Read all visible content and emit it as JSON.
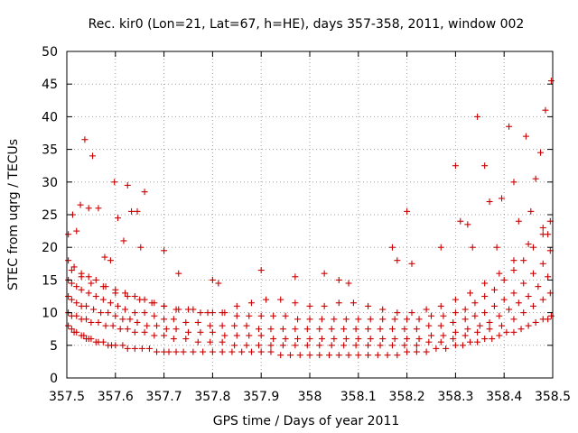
{
  "chart_data": {
    "type": "scatter",
    "title": "Rec. kir0 (Lon=21, Lat=67, h=HE), days 357-358, 2011, window 002",
    "xlabel": "GPS time / Days of year 2011",
    "ylabel": "STEC from uqrg / TECUs",
    "xlim": [
      357.5,
      358.5
    ],
    "ylim": [
      0,
      50
    ],
    "xticks": [
      "357.5",
      "357.6",
      "357.7",
      "357.8",
      "357.9",
      "358",
      "358.1",
      "358.2",
      "358.3",
      "358.4",
      "358.5"
    ],
    "yticks": [
      "0",
      "5",
      "10",
      "15",
      "20",
      "25",
      "30",
      "35",
      "40",
      "45",
      "50"
    ],
    "grid": true,
    "marker": "+",
    "color": "#cc0000",
    "series": [
      {
        "x": [
          357.503,
          357.51,
          357.515,
          357.52,
          357.53,
          357.535,
          357.54,
          357.545,
          357.55,
          357.56,
          357.565,
          357.575,
          357.585,
          357.592,
          357.6,
          357.615,
          357.625,
          357.64,
          357.655,
          357.67,
          357.685,
          357.7,
          357.71,
          357.725,
          357.74,
          357.76,
          357.78,
          357.8,
          357.82,
          357.84,
          357.86,
          357.88,
          357.9,
          357.92,
          357.94,
          357.96,
          357.98,
          358.0,
          358.02,
          358.04,
          358.06,
          358.08,
          358.1,
          358.12,
          358.14,
          358.16,
          358.18,
          358.2,
          358.22,
          358.24,
          358.26,
          358.28,
          358.3,
          358.315,
          358.33,
          358.345,
          358.36,
          358.375,
          358.39,
          358.405,
          358.42,
          358.435,
          358.45,
          358.465,
          358.48,
          358.49,
          358.497
        ],
        "y": [
          8.0,
          7.5,
          7.0,
          7.0,
          6.5,
          6.5,
          6.0,
          6.0,
          6.0,
          5.5,
          5.5,
          5.5,
          5.0,
          5.0,
          5.0,
          5.0,
          4.5,
          4.5,
          4.5,
          4.5,
          4.0,
          4.0,
          4.0,
          4.0,
          4.0,
          4.0,
          4.0,
          4.0,
          4.0,
          4.0,
          4.0,
          4.0,
          4.0,
          4.0,
          3.5,
          3.5,
          3.5,
          3.5,
          3.5,
          3.5,
          3.5,
          3.5,
          3.5,
          3.5,
          3.5,
          3.5,
          3.5,
          4.0,
          4.0,
          4.0,
          4.5,
          4.5,
          5.0,
          5.0,
          5.5,
          5.5,
          6.0,
          6.0,
          6.5,
          7.0,
          7.0,
          7.5,
          8.0,
          8.5,
          9.0,
          9.0,
          9.5
        ]
      },
      {
        "x": [
          357.503,
          357.51,
          357.52,
          357.53,
          357.54,
          357.55,
          357.565,
          357.58,
          357.595,
          357.61,
          357.625,
          357.64,
          357.66,
          357.68,
          357.7,
          357.72,
          357.745,
          357.77,
          357.795,
          357.82,
          357.845,
          357.87,
          357.895,
          357.92,
          357.945,
          357.97,
          357.995,
          358.02,
          358.045,
          358.07,
          358.095,
          358.12,
          358.145,
          358.17,
          358.195,
          358.22,
          358.245,
          358.27,
          358.295,
          358.32,
          358.345,
          358.37,
          358.395,
          358.42,
          358.44,
          358.46,
          358.48,
          358.495
        ],
        "y": [
          10.0,
          9.5,
          9.5,
          9.0,
          9.0,
          8.5,
          8.5,
          8.0,
          8.0,
          7.5,
          7.5,
          7.0,
          7.0,
          6.5,
          6.5,
          6.0,
          6.0,
          5.5,
          5.5,
          5.5,
          5.0,
          5.0,
          5.0,
          5.0,
          5.0,
          5.0,
          5.0,
          5.0,
          5.0,
          5.0,
          5.0,
          5.0,
          5.0,
          5.0,
          5.0,
          5.0,
          5.5,
          5.5,
          6.0,
          6.5,
          7.0,
          7.5,
          8.0,
          9.0,
          10.0,
          11.0,
          12.0,
          13.0
        ]
      },
      {
        "x": [
          357.503,
          357.51,
          357.52,
          357.53,
          357.54,
          357.555,
          357.57,
          357.585,
          357.6,
          357.615,
          357.63,
          357.645,
          357.665,
          357.685,
          357.705,
          357.725,
          357.75,
          357.775,
          357.8,
          357.825,
          357.85,
          357.875,
          357.9,
          357.925,
          357.95,
          357.975,
          358.0,
          358.025,
          358.05,
          358.075,
          358.1,
          358.125,
          358.15,
          358.175,
          358.2,
          358.225,
          358.25,
          358.275,
          358.3,
          358.325,
          358.35,
          358.37,
          358.39,
          358.41,
          358.43,
          358.45,
          358.47,
          358.49
        ],
        "y": [
          12.5,
          12.0,
          11.5,
          11.0,
          11.0,
          10.5,
          10.0,
          10.0,
          9.5,
          9.0,
          9.0,
          8.5,
          8.0,
          8.0,
          7.5,
          7.5,
          7.0,
          7.0,
          7.0,
          6.5,
          6.5,
          6.5,
          6.5,
          6.0,
          6.0,
          6.0,
          6.0,
          6.0,
          6.0,
          6.0,
          6.0,
          6.0,
          6.0,
          6.0,
          6.0,
          6.0,
          6.5,
          6.5,
          7.0,
          7.5,
          8.0,
          8.5,
          9.5,
          10.5,
          11.5,
          12.5,
          14.0,
          15.5
        ]
      },
      {
        "x": [
          357.503,
          357.51,
          357.52,
          357.53,
          357.545,
          357.56,
          357.575,
          357.59,
          357.605,
          357.62,
          357.64,
          357.66,
          357.68,
          357.7,
          357.72,
          357.745,
          357.77,
          357.795,
          357.82,
          357.845,
          357.87,
          357.895,
          357.92,
          357.945,
          357.97,
          357.995,
          358.02,
          358.045,
          358.07,
          358.095,
          358.12,
          358.145,
          358.17,
          358.195,
          358.22,
          358.245,
          358.27,
          358.295,
          358.32,
          358.34,
          358.36,
          358.38,
          358.4,
          358.42,
          358.44,
          358.46,
          358.48,
          358.495
        ],
        "y": [
          15.0,
          14.5,
          14.0,
          13.5,
          13.0,
          12.5,
          12.0,
          11.5,
          11.0,
          10.5,
          10.0,
          10.0,
          9.5,
          9.0,
          9.0,
          8.5,
          8.5,
          8.0,
          8.0,
          8.0,
          8.0,
          7.5,
          7.5,
          7.5,
          7.5,
          7.5,
          7.5,
          7.5,
          7.5,
          7.5,
          7.5,
          7.5,
          7.5,
          7.5,
          7.5,
          8.0,
          8.0,
          8.5,
          9.0,
          9.5,
          10.0,
          11.0,
          12.0,
          13.0,
          14.5,
          16.0,
          17.5,
          19.5
        ]
      },
      {
        "x": [
          357.503,
          357.515,
          357.53,
          357.545,
          357.56,
          357.58,
          357.6,
          357.62,
          357.64,
          357.66,
          357.68,
          357.7,
          357.725,
          357.75,
          357.775,
          357.8,
          357.825,
          357.85,
          357.875,
          357.9,
          357.925,
          357.95,
          357.975,
          358.0,
          358.025,
          358.05,
          358.075,
          358.1,
          358.125,
          358.15,
          358.175,
          358.2,
          358.225,
          358.25,
          358.275,
          358.3,
          358.32,
          358.34,
          358.36,
          358.38,
          358.4,
          358.42,
          358.44,
          358.46,
          358.48,
          358.495
        ],
        "y": [
          18.0,
          17.0,
          16.0,
          15.5,
          15.0,
          14.0,
          13.5,
          13.0,
          12.5,
          12.0,
          11.5,
          11.0,
          10.5,
          10.5,
          10.0,
          10.0,
          10.0,
          9.5,
          9.5,
          9.5,
          9.5,
          9.5,
          9.0,
          9.0,
          9.0,
          9.0,
          9.0,
          9.0,
          9.0,
          9.0,
          9.0,
          9.0,
          9.0,
          9.5,
          9.5,
          10.0,
          10.5,
          11.5,
          12.5,
          13.5,
          15.0,
          16.5,
          18.0,
          20.0,
          22.0,
          24.0
        ]
      },
      {
        "x": [
          357.51,
          357.53,
          357.55,
          357.575,
          357.6,
          357.625,
          357.65,
          357.675,
          357.7,
          357.73,
          357.76,
          357.79,
          357.82,
          357.85,
          357.88,
          357.91,
          357.94,
          357.97,
          358.0,
          358.03,
          358.06,
          358.09,
          358.12,
          358.15,
          358.18,
          358.21,
          358.24,
          358.27,
          358.3,
          358.33,
          358.36,
          358.39,
          358.42,
          358.45,
          358.48
        ],
        "y": [
          16.5,
          15.5,
          14.5,
          14.0,
          13.0,
          12.5,
          12.0,
          11.5,
          11.0,
          10.5,
          10.5,
          10.0,
          10.0,
          11.0,
          11.5,
          12.0,
          12.0,
          11.5,
          11.0,
          11.0,
          11.5,
          11.5,
          11.0,
          10.5,
          10.0,
          10.0,
          10.5,
          11.0,
          12.0,
          13.0,
          14.5,
          16.0,
          18.0,
          20.5,
          23.0
        ]
      },
      {
        "x": [
          357.503,
          357.512,
          357.52,
          357.528,
          357.537,
          357.545,
          357.553,
          357.565,
          357.578,
          357.59,
          357.598,
          357.605,
          357.617,
          357.625,
          357.633,
          357.645,
          357.652,
          357.66,
          357.7,
          357.73,
          357.8,
          357.812,
          357.9,
          357.97,
          358.03,
          358.06,
          358.08,
          358.17,
          358.18,
          358.2,
          358.21,
          358.27,
          358.3,
          358.31,
          358.325,
          358.335,
          358.345,
          358.36,
          358.37,
          358.385,
          358.395,
          358.41,
          358.42,
          358.43,
          358.445,
          358.455,
          358.465,
          358.475,
          358.485,
          358.49,
          358.497
        ],
        "y": [
          22.0,
          25.0,
          22.5,
          26.5,
          36.5,
          26.0,
          34.0,
          26.0,
          18.5,
          18.0,
          30.0,
          24.5,
          21.0,
          29.5,
          25.5,
          25.5,
          20.0,
          28.5,
          19.5,
          16.0,
          15.0,
          14.5,
          16.5,
          15.5,
          16.0,
          15.0,
          14.5,
          20.0,
          18.0,
          25.5,
          17.5,
          20.0,
          32.5,
          24.0,
          23.5,
          20.0,
          40.0,
          32.5,
          27.0,
          20.0,
          27.5,
          38.5,
          30.0,
          24.0,
          37.0,
          25.5,
          30.5,
          34.5,
          41.0,
          22.0,
          45.5
        ]
      }
    ]
  }
}
